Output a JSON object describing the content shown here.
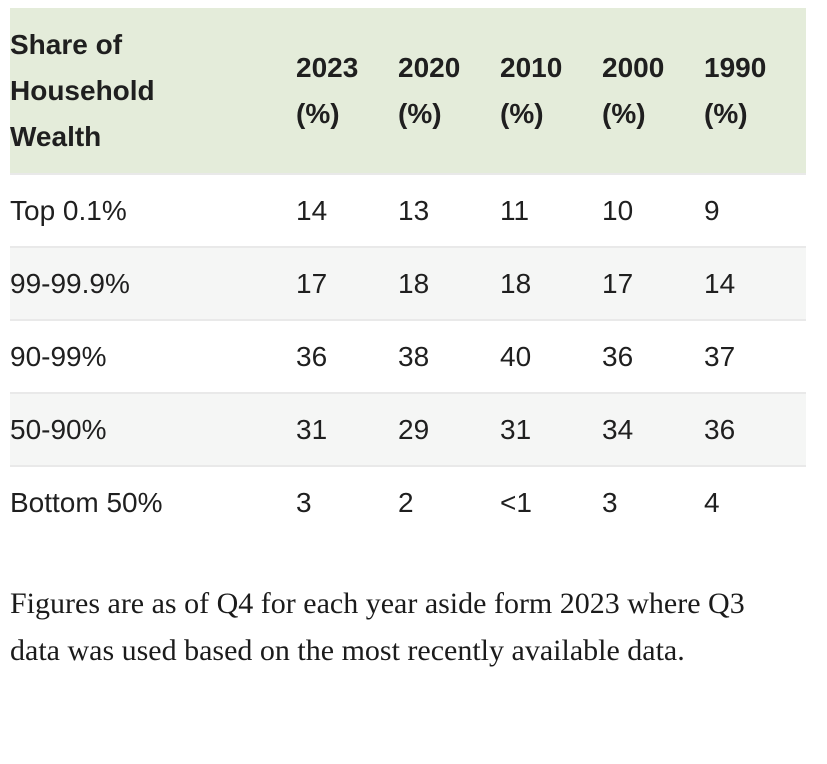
{
  "table": {
    "header": {
      "label": "Share of Household Wealth",
      "columns": [
        {
          "year": "2023",
          "unit": "(%)"
        },
        {
          "year": "2020",
          "unit": "(%)"
        },
        {
          "year": "2010",
          "unit": "(%)"
        },
        {
          "year": "2000",
          "unit": "(%)"
        },
        {
          "year": "1990",
          "unit": "(%)"
        }
      ]
    },
    "rows": [
      {
        "label": "Top 0.1%",
        "values": [
          "14",
          "13",
          "11",
          "10",
          "9"
        ]
      },
      {
        "label": "99-99.9%",
        "values": [
          "17",
          "18",
          "18",
          "17",
          "14"
        ]
      },
      {
        "label": "90-99%",
        "values": [
          "36",
          "38",
          "40",
          "36",
          "37"
        ]
      },
      {
        "label": "50-90%",
        "values": [
          "31",
          "29",
          "31",
          "34",
          "36"
        ]
      },
      {
        "label": "Bottom 50%",
        "values": [
          "3",
          "2",
          "<1",
          "3",
          "4"
        ]
      }
    ]
  },
  "footnote": "Figures are as of Q4 for each year aside form 2023 where Q3 data was used based on the most recently available data.",
  "colors": {
    "header_background": "#e4ecda",
    "row_stripe": "#f5f6f5",
    "row_border": "#e9e9e9",
    "text": "#1f1f1f"
  },
  "chart_data": {
    "type": "table",
    "title": "Share of Household Wealth",
    "columns": [
      "2023 (%)",
      "2020 (%)",
      "2010 (%)",
      "2000 (%)",
      "1990 (%)"
    ],
    "rows": [
      {
        "group": "Top 0.1%",
        "values": [
          14,
          13,
          11,
          10,
          9
        ]
      },
      {
        "group": "99-99.9%",
        "values": [
          17,
          18,
          18,
          17,
          14
        ]
      },
      {
        "group": "90-99%",
        "values": [
          36,
          38,
          40,
          36,
          37
        ]
      },
      {
        "group": "50-90%",
        "values": [
          31,
          29,
          31,
          34,
          36
        ]
      },
      {
        "group": "Bottom 50%",
        "values": [
          3,
          2,
          "<1",
          3,
          4
        ]
      }
    ],
    "note": "Figures are as of Q4 for each year aside form 2023 where Q3 data was used based on the most recently available data.",
    "layout": {
      "header_fill": "#e4ecda",
      "zebra_striping": true,
      "alignment": "left"
    }
  }
}
